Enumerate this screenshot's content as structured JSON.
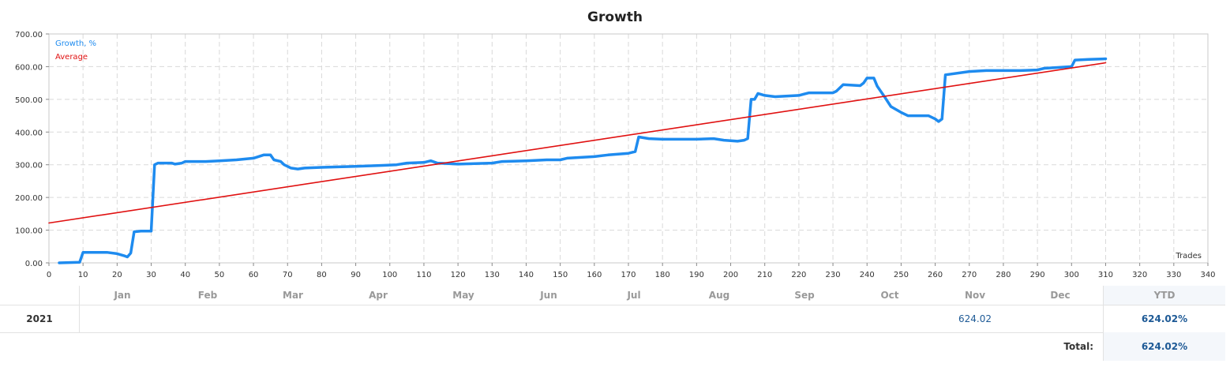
{
  "chart_data": {
    "type": "line",
    "title": "Growth",
    "xlabel": "Trades",
    "ylabel": "",
    "xlim": [
      0,
      340
    ],
    "ylim": [
      0,
      700
    ],
    "x_ticks": [
      "0",
      "10",
      "20",
      "30",
      "40",
      "50",
      "60",
      "70",
      "80",
      "90",
      "100",
      "110",
      "120",
      "130",
      "140",
      "150",
      "160",
      "170",
      "180",
      "190",
      "200",
      "210",
      "220",
      "230",
      "240",
      "250",
      "260",
      "270",
      "280",
      "290",
      "300",
      "310",
      "320",
      "330",
      "340"
    ],
    "y_ticks": [
      "0.00",
      "100.00",
      "200.00",
      "300.00",
      "400.00",
      "500.00",
      "600.00",
      "700.00"
    ],
    "grid": true,
    "legend_position": "top-left",
    "series": [
      {
        "name": "Growth, %",
        "color": "#1e8bef",
        "points": [
          [
            3,
            0
          ],
          [
            9,
            2
          ],
          [
            10,
            32
          ],
          [
            17,
            32
          ],
          [
            20,
            28
          ],
          [
            22,
            22
          ],
          [
            23,
            18
          ],
          [
            24,
            30
          ],
          [
            25,
            95
          ],
          [
            27,
            97
          ],
          [
            29,
            97
          ],
          [
            30,
            97
          ],
          [
            31,
            300
          ],
          [
            32,
            305
          ],
          [
            36,
            305
          ],
          [
            37,
            302
          ],
          [
            39,
            305
          ],
          [
            40,
            310
          ],
          [
            46,
            310
          ],
          [
            50,
            312
          ],
          [
            55,
            315
          ],
          [
            60,
            320
          ],
          [
            63,
            330
          ],
          [
            65,
            330
          ],
          [
            66,
            315
          ],
          [
            68,
            310
          ],
          [
            69,
            300
          ],
          [
            71,
            290
          ],
          [
            73,
            287
          ],
          [
            75,
            290
          ],
          [
            80,
            292
          ],
          [
            90,
            295
          ],
          [
            98,
            298
          ],
          [
            102,
            300
          ],
          [
            105,
            305
          ],
          [
            110,
            307
          ],
          [
            112,
            312
          ],
          [
            114,
            305
          ],
          [
            120,
            302
          ],
          [
            130,
            305
          ],
          [
            133,
            310
          ],
          [
            140,
            312
          ],
          [
            146,
            315
          ],
          [
            150,
            315
          ],
          [
            152,
            320
          ],
          [
            160,
            325
          ],
          [
            164,
            330
          ],
          [
            170,
            335
          ],
          [
            172,
            340
          ],
          [
            173,
            385
          ],
          [
            176,
            380
          ],
          [
            180,
            378
          ],
          [
            190,
            378
          ],
          [
            195,
            380
          ],
          [
            198,
            375
          ],
          [
            202,
            372
          ],
          [
            204,
            375
          ],
          [
            205,
            380
          ],
          [
            206,
            500
          ],
          [
            207,
            500
          ],
          [
            208,
            518
          ],
          [
            210,
            512
          ],
          [
            213,
            508
          ],
          [
            220,
            512
          ],
          [
            223,
            520
          ],
          [
            230,
            520
          ],
          [
            231,
            525
          ],
          [
            233,
            545
          ],
          [
            238,
            542
          ],
          [
            239,
            550
          ],
          [
            240,
            565
          ],
          [
            242,
            565
          ],
          [
            243,
            540
          ],
          [
            245,
            510
          ],
          [
            247,
            478
          ],
          [
            250,
            460
          ],
          [
            252,
            450
          ],
          [
            258,
            450
          ],
          [
            260,
            440
          ],
          [
            261,
            432
          ],
          [
            262,
            440
          ],
          [
            263,
            575
          ],
          [
            270,
            585
          ],
          [
            275,
            588
          ],
          [
            285,
            588
          ],
          [
            290,
            590
          ],
          [
            292,
            595
          ],
          [
            295,
            597
          ],
          [
            300,
            600
          ],
          [
            301,
            620
          ],
          [
            305,
            622
          ],
          [
            310,
            624
          ]
        ]
      },
      {
        "name": "Average",
        "color": "#e01010",
        "points": [
          [
            0,
            122
          ],
          [
            310,
            612
          ]
        ]
      }
    ]
  },
  "table": {
    "months": [
      "Jan",
      "Feb",
      "Mar",
      "Apr",
      "May",
      "Jun",
      "Jul",
      "Aug",
      "Sep",
      "Oct",
      "Nov",
      "Dec"
    ],
    "ytd_header": "YTD",
    "year": "2021",
    "nov_value": "624.02",
    "ytd_value": "624.02%",
    "total_label": "Total:",
    "total_value": "624.02%"
  }
}
